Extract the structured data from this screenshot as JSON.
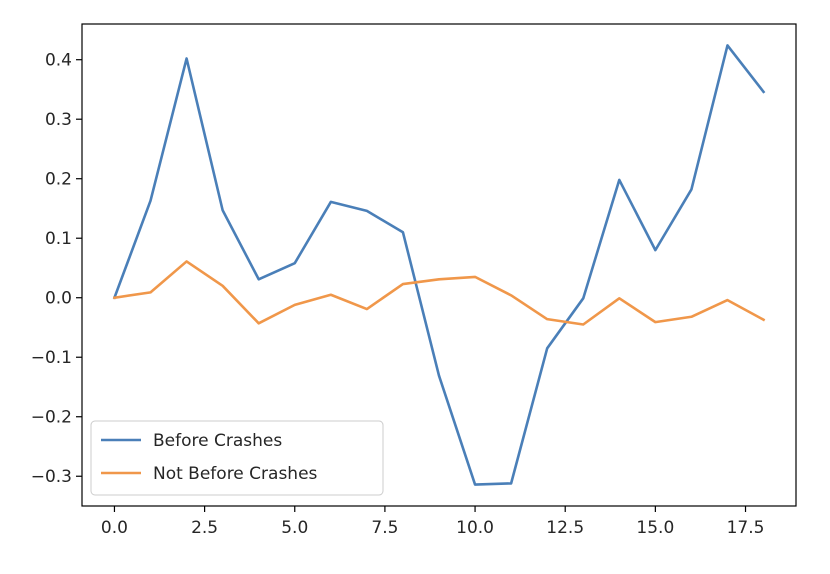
{
  "chart_data": {
    "type": "line",
    "title": "",
    "xlabel": "",
    "ylabel": "",
    "xlim": [
      -0.9,
      18.9
    ],
    "ylim": [
      -0.35,
      0.46
    ],
    "grid": false,
    "legend_position": "lower-left",
    "x": [
      0,
      1,
      2,
      3,
      4,
      5,
      6,
      7,
      8,
      9,
      10,
      11,
      12,
      13,
      14,
      15,
      16,
      17,
      18
    ],
    "x_ticks": [
      0.0,
      2.5,
      5.0,
      7.5,
      10.0,
      12.5,
      15.0,
      17.5
    ],
    "x_tick_labels": [
      "0.0",
      "2.5",
      "5.0",
      "7.5",
      "10.0",
      "12.5",
      "15.0",
      "17.5"
    ],
    "y_ticks": [
      -0.3,
      -0.2,
      -0.1,
      0.0,
      0.1,
      0.2,
      0.3,
      0.4
    ],
    "y_tick_labels": [
      "−0.3",
      "−0.2",
      "−0.1",
      "0.0",
      "0.1",
      "0.2",
      "0.3",
      "0.4"
    ],
    "series": [
      {
        "name": "Before Crashes",
        "color": "#4a7fb8",
        "values": [
          0.0,
          0.163,
          0.402,
          0.147,
          0.031,
          0.058,
          0.161,
          0.146,
          0.11,
          -0.131,
          -0.314,
          -0.312,
          -0.085,
          -0.001,
          0.198,
          0.08,
          0.182,
          0.424,
          0.346
        ]
      },
      {
        "name": "Not Before Crashes",
        "color": "#f0974a",
        "values": [
          0.0,
          0.009,
          0.061,
          0.02,
          -0.043,
          -0.012,
          0.005,
          -0.019,
          0.023,
          0.031,
          0.035,
          0.004,
          -0.036,
          -0.045,
          -0.001,
          -0.041,
          -0.032,
          -0.004,
          -0.037
        ]
      }
    ]
  }
}
